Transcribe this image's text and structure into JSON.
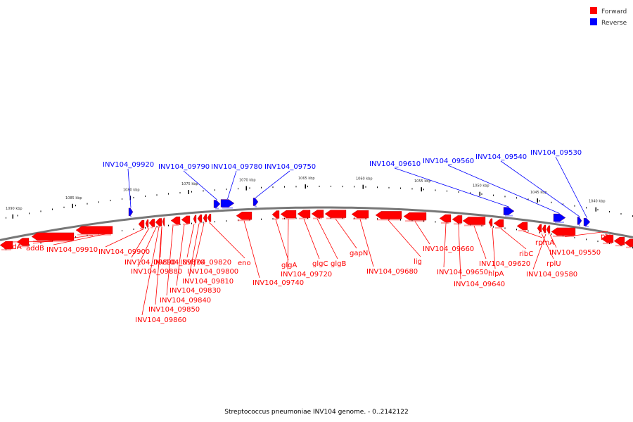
{
  "legend": {
    "forward_label": "Forward",
    "reverse_label": "Reverse",
    "forward_color": "#ff0000",
    "reverse_color": "#0000ff"
  },
  "caption": "Streptococcus pneumoniae INV104 genome. - 0..2142122",
  "scale": {
    "unit": "kbp",
    "ticks": [
      "1090 kbp",
      "1085 kbp",
      "1080 kbp",
      "1075 kbp",
      "1070 kbp",
      "1065 kbp",
      "1060 kbp",
      "1055 kbp",
      "1050 kbp",
      "1045 kbp",
      "1040 kbp"
    ]
  },
  "reverse_genes": [
    "INV104_09920",
    "INV104_09790",
    "INV104_09780",
    "INV104_09750",
    "INV104_09610",
    "INV104_09560",
    "INV104_09540",
    "INV104_09530"
  ],
  "forward_genes": [
    "addA",
    "addB",
    "INV104_09910",
    "INV104_09900",
    "INV104_09890",
    "INV104_09880",
    "INV104_09870",
    "INV104_09860",
    "INV104_09850",
    "INV104_09840",
    "INV104_09830",
    "INV104_09820",
    "INV104_09810",
    "INV104_09800",
    "eno",
    "INV104_09740",
    "glgA",
    "INV104_09720",
    "glgC",
    "glgB",
    "gapN",
    "INV104_09680",
    "lig",
    "INV104_09660",
    "INV104_09650",
    "INV104_09640",
    "INV104_09620",
    "hlpA",
    "ribC",
    "rpmA",
    "rplU",
    "INV104_09580",
    "INV104_09550",
    "pta"
  ]
}
